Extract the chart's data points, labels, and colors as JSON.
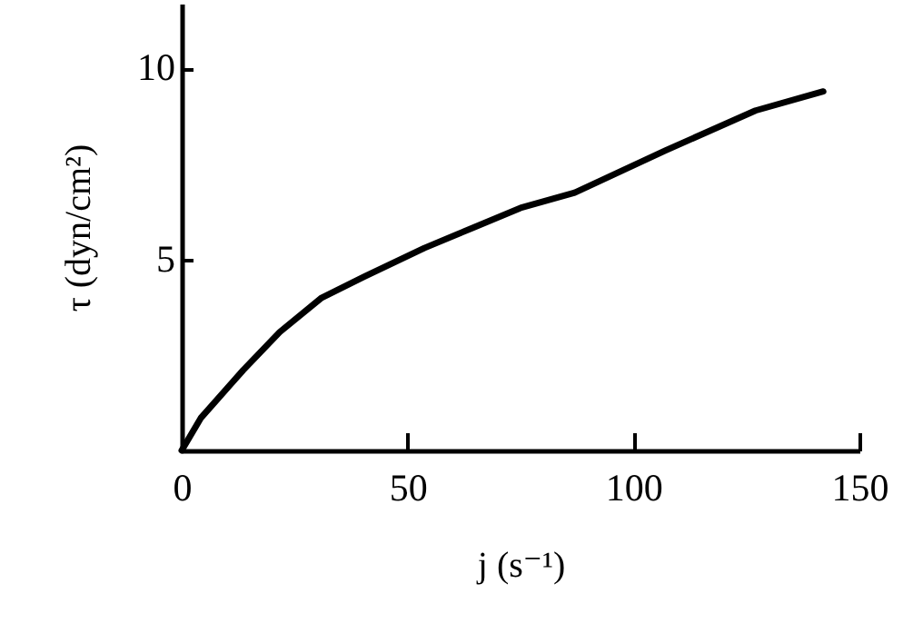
{
  "chart_data": {
    "type": "line",
    "xlabel": "j (s⁻¹)",
    "ylabel": "τ (dyn/cm²)",
    "x": [
      0,
      4.3,
      13.6,
      21.7,
      31,
      40.4,
      53.7,
      75,
      87,
      107,
      127,
      142
    ],
    "values": [
      0,
      0.86,
      2.1,
      3.1,
      4.0,
      4.55,
      5.3,
      6.35,
      6.75,
      7.85,
      8.9,
      9.4
    ],
    "color": "#000000",
    "xlim": [
      0,
      150
    ],
    "ylim": [
      0,
      11.7
    ],
    "xticks": [
      0,
      50,
      100,
      150
    ],
    "yticks": [
      5,
      10
    ],
    "grid": false,
    "line_style": "solid",
    "marker": "none"
  }
}
